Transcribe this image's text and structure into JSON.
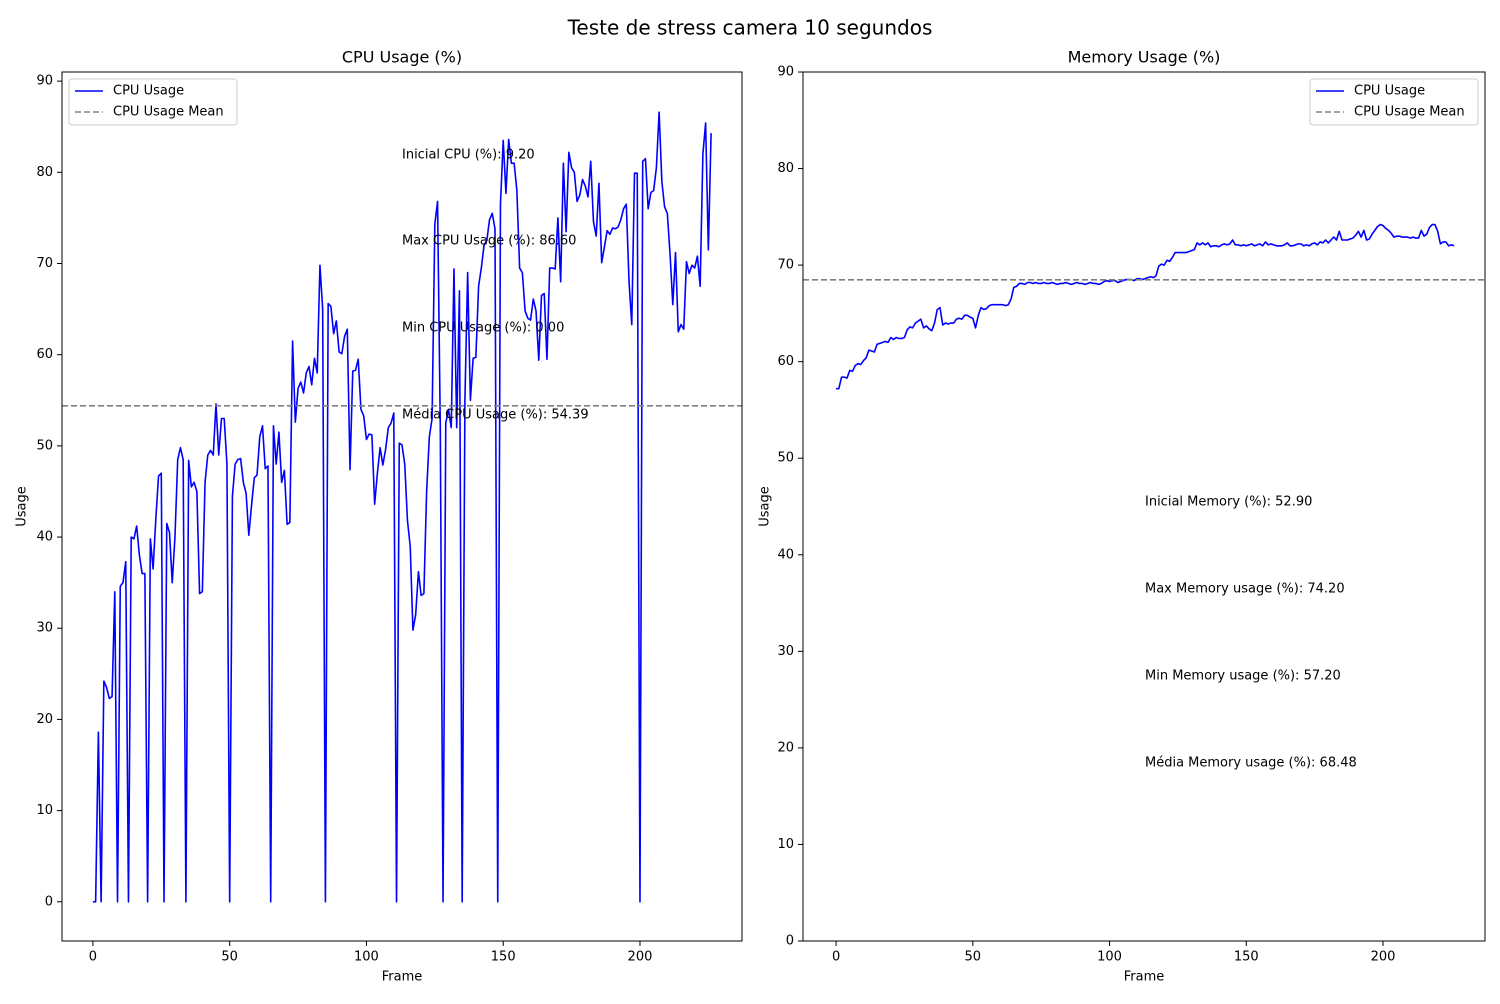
{
  "title": "Teste de stress camera 10 segundos",
  "chart_data": [
    {
      "type": "line",
      "title": "CPU Usage (%)",
      "x_label": "Frame",
      "y_label": "Usage",
      "x": [
        0,
        1,
        2,
        3,
        4,
        5,
        6,
        7,
        8,
        9,
        10,
        11,
        12,
        13,
        14,
        15,
        16,
        17,
        18,
        19,
        20,
        21,
        22,
        23,
        24,
        25,
        26,
        27,
        28,
        29,
        30,
        31,
        32,
        33,
        34,
        35,
        36,
        37,
        38,
        39,
        40,
        41,
        42,
        43,
        44,
        45,
        46,
        47,
        48,
        49,
        50,
        51,
        52,
        53,
        54,
        55,
        56,
        57,
        58,
        59,
        60,
        61,
        62,
        63,
        64,
        65,
        66,
        67,
        68,
        69,
        70,
        71,
        72,
        73,
        74,
        75,
        76,
        77,
        78,
        79,
        80,
        81,
        82,
        83,
        84,
        85,
        86,
        87,
        88,
        89,
        90,
        91,
        92,
        93,
        94,
        95,
        96,
        97,
        98,
        99,
        100,
        101,
        102,
        103,
        104,
        105,
        106,
        107,
        108,
        109,
        110,
        111,
        112,
        113,
        114,
        115,
        116,
        117,
        118,
        119,
        120,
        121,
        122,
        123,
        124,
        125,
        126,
        127,
        128,
        129,
        130,
        131,
        132,
        133,
        134,
        135,
        136,
        137,
        138,
        139,
        140,
        141,
        142,
        143,
        144,
        145,
        146,
        147,
        148,
        149,
        150,
        151,
        152,
        153,
        154,
        155,
        156,
        157,
        158,
        159,
        160,
        161,
        162,
        163,
        164,
        165,
        166,
        167,
        168,
        169,
        170,
        171,
        172,
        173,
        174,
        175,
        176,
        177,
        178,
        179,
        180,
        181,
        182,
        183,
        184,
        185,
        186,
        187,
        188,
        189,
        190,
        191,
        192,
        193,
        194,
        195,
        196,
        197,
        198,
        199,
        200,
        201,
        202,
        203,
        204,
        205,
        206,
        207,
        208,
        209,
        210,
        211,
        212,
        213,
        214,
        215,
        216,
        217,
        218,
        219,
        220,
        221,
        222,
        223,
        224,
        225,
        226
      ],
      "series": [
        {
          "name": "CPU Usage",
          "color": "#0000ff",
          "values": [
            0,
            0,
            18.6,
            0,
            24.2,
            23.5,
            22.3,
            22.5,
            34,
            0,
            34.6,
            35,
            37.3,
            0,
            40,
            39.8,
            41.2,
            38,
            36,
            36,
            0,
            39.8,
            36.5,
            42,
            46.7,
            47,
            0,
            41.5,
            40.5,
            35,
            40,
            48.5,
            49.8,
            48.5,
            0,
            48.4,
            45.5,
            46,
            45,
            33.8,
            34,
            46,
            49,
            49.5,
            49,
            54.6,
            49,
            53,
            53,
            48,
            0,
            44.5,
            48,
            48.5,
            48.6,
            46,
            44.8,
            40.2,
            43.5,
            46.5,
            46.8,
            51,
            52.2,
            47.5,
            47.8,
            0,
            52.2,
            48,
            51.5,
            46,
            47.3,
            41.4,
            41.6,
            61.5,
            52.6,
            56.3,
            57,
            55.8,
            58,
            58.7,
            56.7,
            59.6,
            58,
            69.8,
            65,
            0,
            65.6,
            65.3,
            62.3,
            63.7,
            60.3,
            60.1,
            62,
            62.8,
            47.4,
            58.2,
            58.3,
            59.5,
            54,
            53.3,
            50.7,
            51.3,
            51.2,
            43.6,
            47,
            49.8,
            47.9,
            49.6,
            52,
            52.5,
            53.6,
            0,
            50.3,
            50.1,
            48,
            41.8,
            39,
            29.8,
            31.5,
            36.2,
            33.6,
            33.8,
            45,
            51,
            53,
            74.3,
            76.8,
            52,
            0,
            52.5,
            54,
            52,
            69.4,
            52,
            67,
            0,
            55,
            69,
            55,
            59.6,
            59.7,
            67.5,
            69.5,
            72,
            72.5,
            74.8,
            75.5,
            73.8,
            0,
            76.5,
            83.5,
            77.7,
            83.6,
            81,
            81,
            78,
            69.5,
            69,
            64.8,
            64,
            63.8,
            66.1,
            64.8,
            59.4,
            66.5,
            66.7,
            59.5,
            69.5,
            69.5,
            69.4,
            75,
            68,
            81,
            73.5,
            82.2,
            80.5,
            80,
            76.8,
            77.5,
            79.2,
            78.5,
            77.3,
            81.2,
            74.6,
            73,
            78.8,
            70.1,
            71.8,
            73.6,
            73.2,
            73.9,
            73.8,
            74,
            74.8,
            76,
            76.5,
            68,
            63.3,
            79.9,
            79.9,
            0,
            81.2,
            81.5,
            76,
            77.8,
            78,
            80.5,
            86.6,
            79,
            76.2,
            75.5,
            71,
            65.5,
            71.2,
            62.5,
            63.3,
            62.8,
            70.2,
            68.9,
            69.8,
            69.5,
            70.8,
            67.5,
            82,
            85.4,
            71.5,
            84.3
          ]
        }
      ],
      "mean": {
        "name": "CPU Usage Mean",
        "value": 54.39,
        "color": "#808080"
      },
      "annotations": [
        "Inicial CPU (%): 9.20",
        "Max CPU Usage (%): 86.60",
        "Min CPU Usage (%): 0.00",
        "Média CPU Usage (%): 54.39"
      ],
      "xlim": [
        -11.3,
        237.3
      ],
      "ylim": [
        -4.3,
        91.0
      ],
      "xticks": [
        0,
        50,
        100,
        150,
        200
      ],
      "yticks": [
        0,
        10,
        20,
        30,
        40,
        50,
        60,
        70,
        80,
        90
      ],
      "legend": "upper left"
    },
    {
      "type": "line",
      "title": "Memory Usage (%)",
      "x_label": "Frame",
      "y_label": "Usage",
      "x": [
        0,
        1,
        2,
        3,
        4,
        5,
        6,
        7,
        8,
        9,
        10,
        11,
        12,
        13,
        14,
        15,
        16,
        17,
        18,
        19,
        20,
        21,
        22,
        23,
        24,
        25,
        26,
        27,
        28,
        29,
        30,
        31,
        32,
        33,
        34,
        35,
        36,
        37,
        38,
        39,
        40,
        41,
        42,
        43,
        44,
        45,
        46,
        47,
        48,
        49,
        50,
        51,
        52,
        53,
        54,
        55,
        56,
        57,
        58,
        59,
        60,
        61,
        62,
        63,
        64,
        65,
        66,
        67,
        68,
        69,
        70,
        71,
        72,
        73,
        74,
        75,
        76,
        77,
        78,
        79,
        80,
        81,
        82,
        83,
        84,
        85,
        86,
        87,
        88,
        89,
        90,
        91,
        92,
        93,
        94,
        95,
        96,
        97,
        98,
        99,
        100,
        101,
        102,
        103,
        104,
        105,
        106,
        107,
        108,
        109,
        110,
        111,
        112,
        113,
        114,
        115,
        116,
        117,
        118,
        119,
        120,
        121,
        122,
        123,
        124,
        125,
        126,
        127,
        128,
        129,
        130,
        131,
        132,
        133,
        134,
        135,
        136,
        137,
        138,
        139,
        140,
        141,
        142,
        143,
        144,
        145,
        146,
        147,
        148,
        149,
        150,
        151,
        152,
        153,
        154,
        155,
        156,
        157,
        158,
        159,
        160,
        161,
        162,
        163,
        164,
        165,
        166,
        167,
        168,
        169,
        170,
        171,
        172,
        173,
        174,
        175,
        176,
        177,
        178,
        179,
        180,
        181,
        182,
        183,
        184,
        185,
        186,
        187,
        188,
        189,
        190,
        191,
        192,
        193,
        194,
        195,
        196,
        197,
        198,
        199,
        200,
        201,
        202,
        203,
        204,
        205,
        206,
        207,
        208,
        209,
        210,
        211,
        212,
        213,
        214,
        215,
        216,
        217,
        218,
        219,
        220,
        221,
        222,
        223,
        224,
        225,
        226
      ],
      "series": [
        {
          "name": "CPU Usage",
          "color": "#0000ff",
          "values": [
            57.2,
            57.2,
            58.4,
            58.4,
            58.3,
            59.1,
            59.0,
            59.6,
            59.8,
            59.7,
            60.1,
            60.4,
            61.2,
            61.1,
            61.0,
            61.8,
            61.9,
            62.0,
            62.1,
            62.0,
            62.5,
            62.3,
            62.5,
            62.4,
            62.4,
            62.5,
            63.3,
            63.6,
            63.5,
            64.0,
            64.2,
            64.4,
            63.5,
            63.7,
            63.4,
            63.2,
            64.0,
            65.4,
            65.6,
            63.8,
            64.0,
            63.9,
            64.0,
            64.0,
            64.4,
            64.5,
            64.4,
            64.8,
            64.8,
            64.6,
            64.5,
            63.5,
            64.8,
            65.6,
            65.4,
            65.5,
            65.8,
            65.9,
            65.9,
            65.9,
            65.9,
            65.9,
            65.8,
            65.9,
            66.5,
            67.7,
            67.8,
            68.1,
            68.1,
            68.0,
            68.2,
            68.2,
            68.1,
            68.2,
            68.1,
            68.1,
            68.2,
            68.1,
            68.1,
            68.2,
            68.1,
            68.0,
            68.1,
            68.1,
            68.2,
            68.1,
            68.0,
            68.1,
            68.2,
            68.1,
            68.1,
            68.0,
            68.1,
            68.2,
            68.1,
            68.1,
            68.0,
            68.1,
            68.3,
            68.4,
            68.3,
            68.4,
            68.4,
            68.2,
            68.3,
            68.4,
            68.5,
            68.5,
            68.5,
            68.4,
            68.6,
            68.6,
            68.5,
            68.6,
            68.7,
            68.8,
            68.7,
            68.9,
            69.9,
            70.1,
            70.0,
            70.5,
            70.4,
            70.8,
            71.3,
            71.3,
            71.3,
            71.3,
            71.3,
            71.4,
            71.5,
            71.6,
            72.3,
            72.1,
            72.3,
            72.1,
            72.3,
            71.9,
            72.0,
            72.0,
            71.9,
            72.1,
            72.2,
            72.1,
            72.2,
            72.6,
            72.1,
            72.1,
            72.0,
            72.1,
            72.0,
            72.1,
            72.2,
            72.0,
            72.1,
            72.2,
            72.0,
            72.4,
            72.1,
            72.2,
            72.1,
            72.0,
            72.0,
            72.0,
            72.1,
            72.3,
            72.0,
            72.0,
            72.1,
            72.2,
            72.2,
            72.0,
            72.1,
            72.0,
            72.2,
            72.3,
            72.1,
            72.4,
            72.3,
            72.6,
            72.3,
            72.6,
            72.9,
            72.6,
            73.5,
            72.6,
            72.6,
            72.6,
            72.7,
            72.8,
            73.1,
            73.5,
            72.9,
            73.6,
            72.6,
            72.7,
            73.2,
            73.6,
            74.0,
            74.2,
            74.1,
            73.8,
            73.6,
            73.3,
            72.9,
            73.0,
            73.0,
            72.9,
            72.9,
            72.9,
            72.8,
            72.9,
            72.8,
            72.8,
            73.6,
            73.0,
            73.2,
            73.9,
            74.2,
            74.2,
            73.5,
            72.2,
            72.4,
            72.4,
            72.0,
            72.1,
            72.0
          ]
        }
      ],
      "mean": {
        "name": "CPU Usage Mean",
        "value": 68.48,
        "color": "#808080"
      },
      "annotations": [
        "Inicial Memory (%): 52.90",
        "Max Memory usage (%): 74.20",
        "Min Memory usage (%): 57.20",
        "Média Memory usage (%): 68.48"
      ],
      "xlim": [
        -12.1,
        237.3
      ],
      "ylim": [
        0,
        90
      ],
      "xticks": [
        0,
        50,
        100,
        150,
        200
      ],
      "yticks": [
        0,
        10,
        20,
        30,
        40,
        50,
        60,
        70,
        80,
        90
      ],
      "legend": "upper right"
    }
  ]
}
